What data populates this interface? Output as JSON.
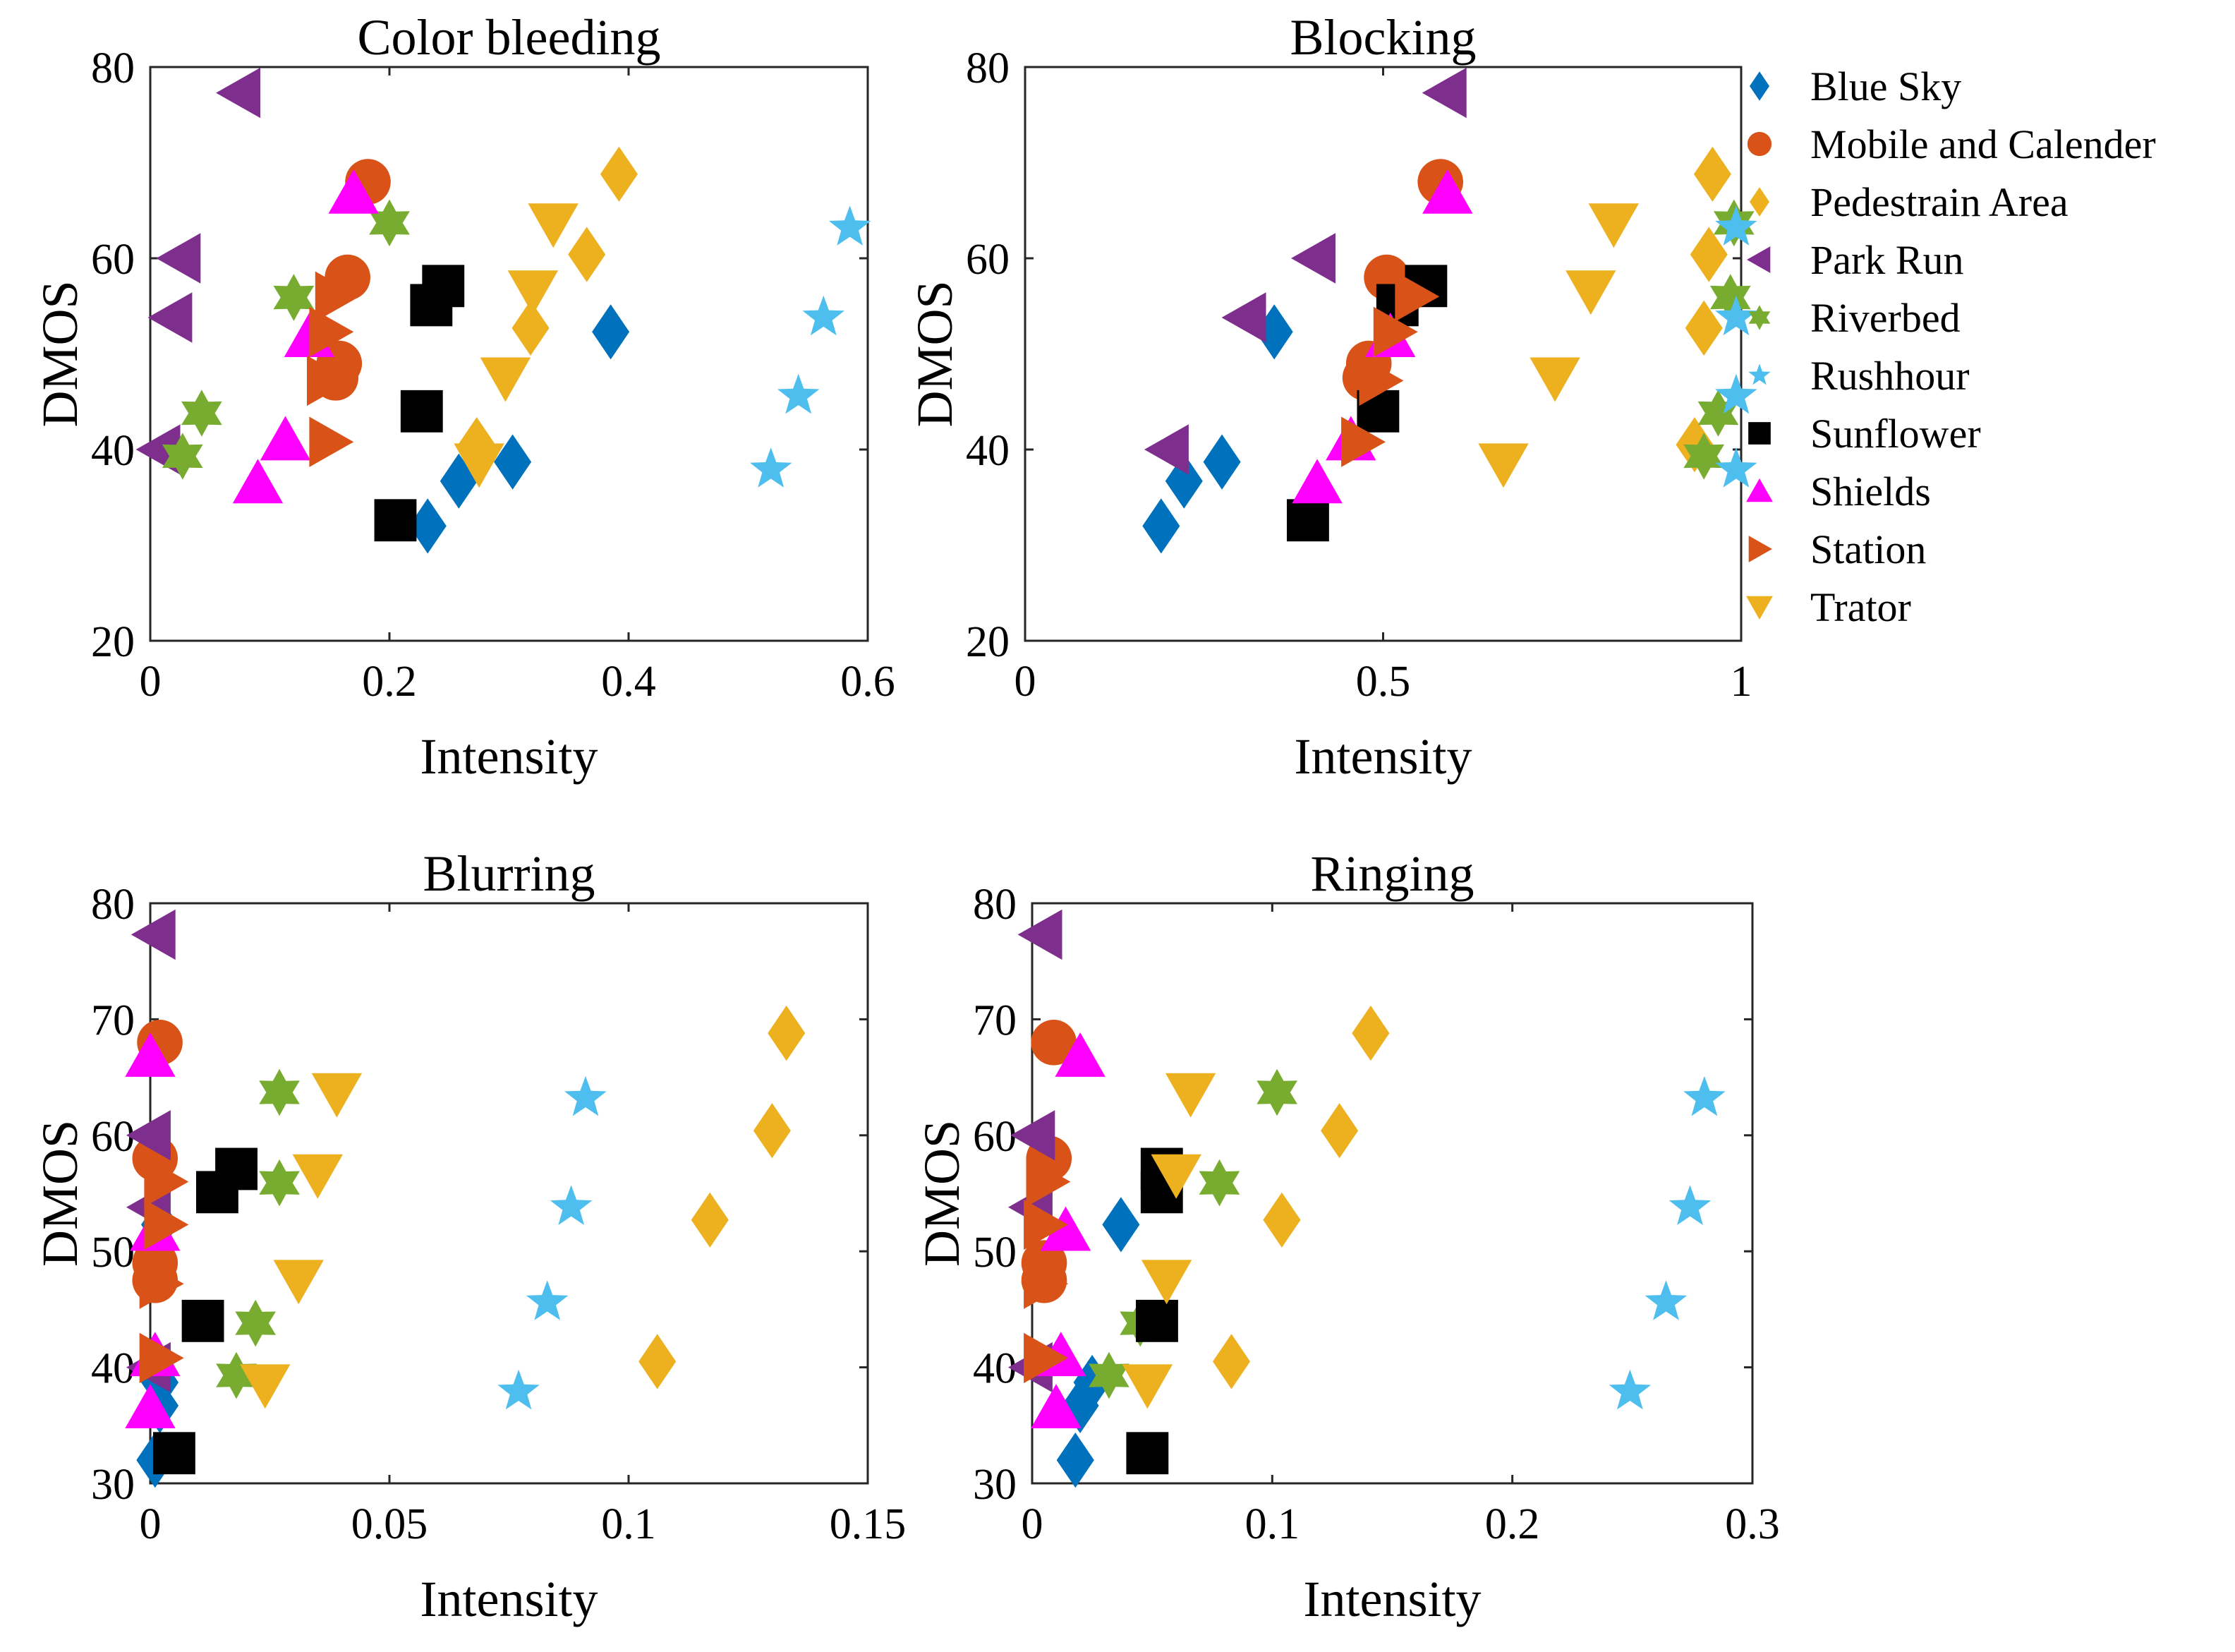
{
  "colors": {
    "Blue Sky": "#0072BD",
    "Mobile and Calender": "#D95319",
    "Pedestrain Area": "#EDB120",
    "Park Run": "#7E2F8E",
    "Riverbed": "#77AC30",
    "Rushhour": "#4DBEEE",
    "Sunflower": "#000000",
    "Shields": "#FF00FF",
    "Station": "#D95319",
    "Trator": "#EDB120"
  },
  "legend": {
    "placement": "right of top-right panel",
    "entries": [
      {
        "name": "Blue Sky",
        "marker": "diamond"
      },
      {
        "name": "Mobile and Calender",
        "marker": "circle"
      },
      {
        "name": "Pedestrain Area",
        "marker": "diamond"
      },
      {
        "name": "Park Run",
        "marker": "triangle-left"
      },
      {
        "name": "Riverbed",
        "marker": "hexagram"
      },
      {
        "name": "Rushhour",
        "marker": "pentagram"
      },
      {
        "name": "Sunflower",
        "marker": "square"
      },
      {
        "name": "Shields",
        "marker": "triangle-up"
      },
      {
        "name": "Station",
        "marker": "triangle-right"
      },
      {
        "name": "Trator",
        "marker": "triangle-down"
      }
    ]
  },
  "chart_data": [
    {
      "type": "scatter",
      "title": "Color bleeding",
      "xlabel": "Intensity",
      "ylabel": "DMOS",
      "xlim": [
        0,
        0.6
      ],
      "ylim": [
        20,
        80
      ],
      "xticks": [
        0,
        0.2,
        0.4,
        0.6
      ],
      "xtick_labels": [
        "0",
        "0.2",
        "0.4",
        "0.6"
      ],
      "yticks": [
        20,
        40,
        60,
        80
      ],
      "ytick_labels": [
        "20",
        "40",
        "60",
        "80"
      ],
      "series": [
        {
          "name": "Blue Sky",
          "points": [
            [
              0.385,
              52.3
            ],
            [
              0.303,
              38.7
            ],
            [
              0.258,
              36.7
            ],
            [
              0.232,
              32.0
            ]
          ]
        },
        {
          "name": "Mobile and Calender",
          "points": [
            [
              0.182,
              68.0
            ],
            [
              0.165,
              58.0
            ],
            [
              0.158,
              49.0
            ],
            [
              0.155,
              47.5
            ]
          ]
        },
        {
          "name": "Pedestrain Area",
          "points": [
            [
              0.392,
              68.8
            ],
            [
              0.365,
              60.4
            ],
            [
              0.318,
              52.7
            ],
            [
              0.273,
              40.5
            ]
          ]
        },
        {
          "name": "Park Run",
          "points": [
            [
              0.075,
              77.3
            ],
            [
              0.025,
              60.0
            ],
            [
              0.018,
              53.8
            ],
            [
              0.008,
              40.0
            ]
          ]
        },
        {
          "name": "Riverbed",
          "points": [
            [
              0.2,
              63.7
            ],
            [
              0.12,
              55.9
            ],
            [
              0.043,
              43.8
            ],
            [
              0.027,
              39.3
            ]
          ]
        },
        {
          "name": "Rushhour",
          "points": [
            [
              0.585,
              63.2
            ],
            [
              0.563,
              53.8
            ],
            [
              0.542,
              45.6
            ],
            [
              0.519,
              37.9
            ]
          ]
        },
        {
          "name": "Sunflower",
          "points": [
            [
              0.245,
              57.1
            ],
            [
              0.235,
              55.1
            ],
            [
              0.227,
              44.0
            ],
            [
              0.205,
              32.6
            ]
          ]
        },
        {
          "name": "Shields",
          "points": [
            [
              0.17,
              66.8
            ],
            [
              0.133,
              51.8
            ],
            [
              0.113,
              41.0
            ],
            [
              0.09,
              36.5
            ]
          ]
        },
        {
          "name": "Station",
          "points": [
            [
              0.155,
              56.0
            ],
            [
              0.15,
              52.3
            ],
            [
              0.148,
              47.2
            ],
            [
              0.15,
              40.8
            ]
          ]
        },
        {
          "name": "Trator",
          "points": [
            [
              0.337,
              63.6
            ],
            [
              0.32,
              56.6
            ],
            [
              0.297,
              47.5
            ],
            [
              0.275,
              38.5
            ]
          ]
        }
      ]
    },
    {
      "type": "scatter",
      "title": "Blocking",
      "xlabel": "Intensity",
      "ylabel": "DMOS",
      "xlim": [
        0,
        1
      ],
      "ylim": [
        20,
        80
      ],
      "xticks": [
        0,
        0.5,
        1
      ],
      "xtick_labels": [
        "0",
        "0.5",
        "1"
      ],
      "yticks": [
        20,
        40,
        60,
        80
      ],
      "ytick_labels": [
        "20",
        "40",
        "60",
        "80"
      ],
      "series": [
        {
          "name": "Blue Sky",
          "points": [
            [
              0.348,
              52.3
            ],
            [
              0.275,
              38.7
            ],
            [
              0.222,
              36.7
            ],
            [
              0.19,
              32.0
            ]
          ]
        },
        {
          "name": "Mobile and Calender",
          "points": [
            [
              0.58,
              68.0
            ],
            [
              0.505,
              58.0
            ],
            [
              0.48,
              49.0
            ],
            [
              0.475,
              47.5
            ]
          ]
        },
        {
          "name": "Pedestrain Area",
          "points": [
            [
              0.96,
              68.8
            ],
            [
              0.955,
              60.4
            ],
            [
              0.948,
              52.7
            ],
            [
              0.935,
              40.5
            ]
          ]
        },
        {
          "name": "Park Run",
          "points": [
            [
              0.588,
              77.3
            ],
            [
              0.405,
              60.0
            ],
            [
              0.308,
              53.8
            ],
            [
              0.2,
              40.0
            ]
          ]
        },
        {
          "name": "Riverbed",
          "points": [
            [
              0.99,
              63.7
            ],
            [
              0.985,
              55.9
            ],
            [
              0.968,
              43.8
            ],
            [
              0.948,
              39.3
            ]
          ]
        },
        {
          "name": "Rushhour",
          "points": [
            [
              0.993,
              63.2
            ],
            [
              0.993,
              53.8
            ],
            [
              0.993,
              45.6
            ],
            [
              0.993,
              37.9
            ]
          ]
        },
        {
          "name": "Sunflower",
          "points": [
            [
              0.56,
              57.1
            ],
            [
              0.52,
              55.1
            ],
            [
              0.493,
              44.0
            ],
            [
              0.395,
              32.6
            ]
          ]
        },
        {
          "name": "Shields",
          "points": [
            [
              0.59,
              66.8
            ],
            [
              0.51,
              51.8
            ],
            [
              0.455,
              41.0
            ],
            [
              0.408,
              36.5
            ]
          ]
        },
        {
          "name": "Station",
          "points": [
            [
              0.545,
              56.0
            ],
            [
              0.515,
              52.3
            ],
            [
              0.495,
              47.2
            ],
            [
              0.47,
              40.8
            ]
          ]
        },
        {
          "name": "Trator",
          "points": [
            [
              0.822,
              63.6
            ],
            [
              0.79,
              56.6
            ],
            [
              0.74,
              47.5
            ],
            [
              0.668,
              38.5
            ]
          ]
        }
      ]
    },
    {
      "type": "scatter",
      "title": "Blurring",
      "xlabel": "Intensity",
      "ylabel": "DMOS",
      "xlim": [
        0,
        0.15
      ],
      "ylim": [
        30,
        80
      ],
      "xticks": [
        0,
        0.05,
        0.1,
        0.15
      ],
      "xtick_labels": [
        "0",
        "0.05",
        "0.1",
        "0.15"
      ],
      "yticks": [
        30,
        40,
        50,
        60,
        70,
        80
      ],
      "ytick_labels": [
        "30",
        "40",
        "50",
        "60",
        "70",
        "80"
      ],
      "series": [
        {
          "name": "Blue Sky",
          "points": [
            [
              0.002,
              52.3
            ],
            [
              0.002,
              38.7
            ],
            [
              0.002,
              36.7
            ],
            [
              0.001,
              32.0
            ]
          ]
        },
        {
          "name": "Mobile and Calender",
          "points": [
            [
              0.002,
              68.0
            ],
            [
              0.001,
              58.0
            ],
            [
              0.001,
              49.0
            ],
            [
              0.001,
              47.5
            ]
          ]
        },
        {
          "name": "Pedestrain Area",
          "points": [
            [
              0.133,
              68.8
            ],
            [
              0.13,
              60.4
            ],
            [
              0.117,
              52.7
            ],
            [
              0.106,
              40.5
            ]
          ]
        },
        {
          "name": "Park Run",
          "points": [
            [
              0.001,
              77.3
            ],
            [
              0.0,
              60.0
            ],
            [
              0.0,
              53.8
            ],
            [
              0.0,
              40.0
            ]
          ]
        },
        {
          "name": "Riverbed",
          "points": [
            [
              0.027,
              63.7
            ],
            [
              0.027,
              55.9
            ],
            [
              0.022,
              43.8
            ],
            [
              0.018,
              39.3
            ]
          ]
        },
        {
          "name": "Rushhour",
          "points": [
            [
              0.091,
              63.2
            ],
            [
              0.088,
              53.8
            ],
            [
              0.083,
              45.6
            ],
            [
              0.077,
              37.9
            ]
          ]
        },
        {
          "name": "Sunflower",
          "points": [
            [
              0.018,
              57.1
            ],
            [
              0.014,
              55.1
            ],
            [
              0.011,
              44.0
            ],
            [
              0.005,
              32.6
            ]
          ]
        },
        {
          "name": "Shields",
          "points": [
            [
              0.0,
              66.8
            ],
            [
              0.001,
              51.8
            ],
            [
              0.001,
              41.0
            ],
            [
              0.0,
              36.5
            ]
          ]
        },
        {
          "name": "Station",
          "points": [
            [
              0.003,
              56.0
            ],
            [
              0.003,
              52.3
            ],
            [
              0.002,
              47.2
            ],
            [
              0.002,
              40.8
            ]
          ]
        },
        {
          "name": "Trator",
          "points": [
            [
              0.039,
              63.6
            ],
            [
              0.035,
              56.6
            ],
            [
              0.031,
              47.5
            ],
            [
              0.024,
              38.5
            ]
          ]
        }
      ]
    },
    {
      "type": "scatter",
      "title": "Ringing",
      "xlabel": "Intensity",
      "ylabel": "DMOS",
      "xlim": [
        0,
        0.3
      ],
      "ylim": [
        30,
        80
      ],
      "xticks": [
        0,
        0.1,
        0.2,
        0.3
      ],
      "xtick_labels": [
        "0",
        "0.1",
        "0.2",
        "0.3"
      ],
      "yticks": [
        30,
        40,
        50,
        60,
        70,
        80
      ],
      "ytick_labels": [
        "30",
        "40",
        "50",
        "60",
        "70",
        "80"
      ],
      "series": [
        {
          "name": "Blue Sky",
          "points": [
            [
              0.037,
              52.3
            ],
            [
              0.025,
              38.7
            ],
            [
              0.02,
              36.7
            ],
            [
              0.018,
              32.0
            ]
          ]
        },
        {
          "name": "Mobile and Calender",
          "points": [
            [
              0.009,
              68.0
            ],
            [
              0.007,
              58.0
            ],
            [
              0.005,
              49.0
            ],
            [
              0.005,
              47.5
            ]
          ]
        },
        {
          "name": "Pedestrain Area",
          "points": [
            [
              0.141,
              68.8
            ],
            [
              0.128,
              60.4
            ],
            [
              0.104,
              52.7
            ],
            [
              0.083,
              40.5
            ]
          ]
        },
        {
          "name": "Park Run",
          "points": [
            [
              0.004,
              77.3
            ],
            [
              0.001,
              60.0
            ],
            [
              0.0,
              53.8
            ],
            [
              0.0,
              40.0
            ]
          ]
        },
        {
          "name": "Riverbed",
          "points": [
            [
              0.102,
              63.7
            ],
            [
              0.078,
              55.9
            ],
            [
              0.045,
              43.8
            ],
            [
              0.032,
              39.3
            ]
          ]
        },
        {
          "name": "Rushhour",
          "points": [
            [
              0.28,
              63.2
            ],
            [
              0.274,
              53.8
            ],
            [
              0.264,
              45.6
            ],
            [
              0.249,
              37.9
            ]
          ]
        },
        {
          "name": "Sunflower",
          "points": [
            [
              0.054,
              57.1
            ],
            [
              0.054,
              55.1
            ],
            [
              0.052,
              44.0
            ],
            [
              0.048,
              32.6
            ]
          ]
        },
        {
          "name": "Shields",
          "points": [
            [
              0.02,
              66.8
            ],
            [
              0.014,
              51.8
            ],
            [
              0.012,
              41.0
            ],
            [
              0.01,
              36.5
            ]
          ]
        },
        {
          "name": "Station",
          "points": [
            [
              0.006,
              56.0
            ],
            [
              0.005,
              52.3
            ],
            [
              0.005,
              47.2
            ],
            [
              0.005,
              40.8
            ]
          ]
        },
        {
          "name": "Trator",
          "points": [
            [
              0.066,
              63.6
            ],
            [
              0.06,
              56.6
            ],
            [
              0.056,
              47.5
            ],
            [
              0.048,
              38.5
            ]
          ]
        }
      ]
    }
  ]
}
